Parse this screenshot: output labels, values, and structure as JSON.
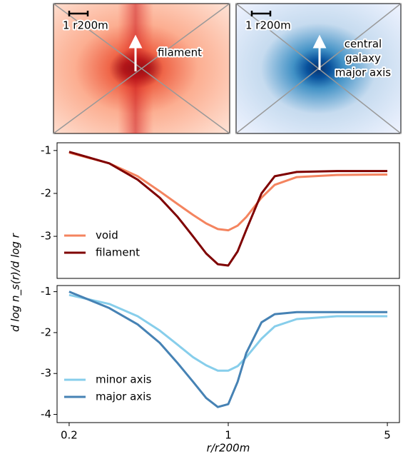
{
  "images": [
    {
      "scale_label": "1 r200m",
      "annotation": [
        "filament"
      ]
    },
    {
      "scale_label": "1 r200m",
      "annotation": [
        "central",
        "galaxy",
        "major axis"
      ]
    }
  ],
  "chart_data": [
    {
      "type": "line",
      "ylabel": "d log n_s(r)/d log r",
      "log_x": true,
      "x": [
        0.2,
        0.3,
        0.4,
        0.5,
        0.6,
        0.7,
        0.8,
        0.9,
        1.0,
        1.1,
        1.2,
        1.4,
        1.6,
        2,
        3,
        5
      ],
      "xlim": [
        0.177,
        5.65
      ],
      "ylim": [
        -3.98,
        -0.82
      ],
      "yticks": [
        -1,
        -2,
        -3
      ],
      "legend": "lower left",
      "series": [
        {
          "name": "void",
          "color": "#f4845f",
          "values": [
            -1.05,
            -1.3,
            -1.6,
            -1.95,
            -2.25,
            -2.5,
            -2.7,
            -2.83,
            -2.86,
            -2.75,
            -2.55,
            -2.1,
            -1.8,
            -1.62,
            -1.57,
            -1.56
          ]
        },
        {
          "name": "filament",
          "color": "#7f0000",
          "values": [
            -1.03,
            -1.3,
            -1.68,
            -2.1,
            -2.55,
            -3.0,
            -3.4,
            -3.65,
            -3.68,
            -3.35,
            -2.85,
            -2.0,
            -1.6,
            -1.5,
            -1.48,
            -1.48
          ]
        }
      ]
    },
    {
      "type": "line",
      "xlabel": "r/r200m",
      "log_x": true,
      "x": [
        0.2,
        0.3,
        0.4,
        0.5,
        0.6,
        0.7,
        0.8,
        0.9,
        1.0,
        1.1,
        1.2,
        1.4,
        1.6,
        2,
        3,
        5
      ],
      "xlim": [
        0.177,
        5.65
      ],
      "ylim": [
        -4.2,
        -0.85
      ],
      "yticks": [
        -1,
        -2,
        -3,
        -4
      ],
      "xticks": [
        0.2,
        1,
        5
      ],
      "legend": "lower left",
      "series": [
        {
          "name": "minor axis",
          "color": "#87ceeb",
          "values": [
            -1.08,
            -1.3,
            -1.6,
            -1.95,
            -2.3,
            -2.6,
            -2.8,
            -2.93,
            -2.93,
            -2.82,
            -2.6,
            -2.15,
            -1.85,
            -1.67,
            -1.6,
            -1.6
          ]
        },
        {
          "name": "major axis",
          "color": "#4682b4",
          "values": [
            -1.0,
            -1.4,
            -1.8,
            -2.25,
            -2.75,
            -3.2,
            -3.6,
            -3.82,
            -3.75,
            -3.2,
            -2.5,
            -1.75,
            -1.55,
            -1.5,
            -1.5,
            -1.5
          ]
        }
      ]
    }
  ]
}
